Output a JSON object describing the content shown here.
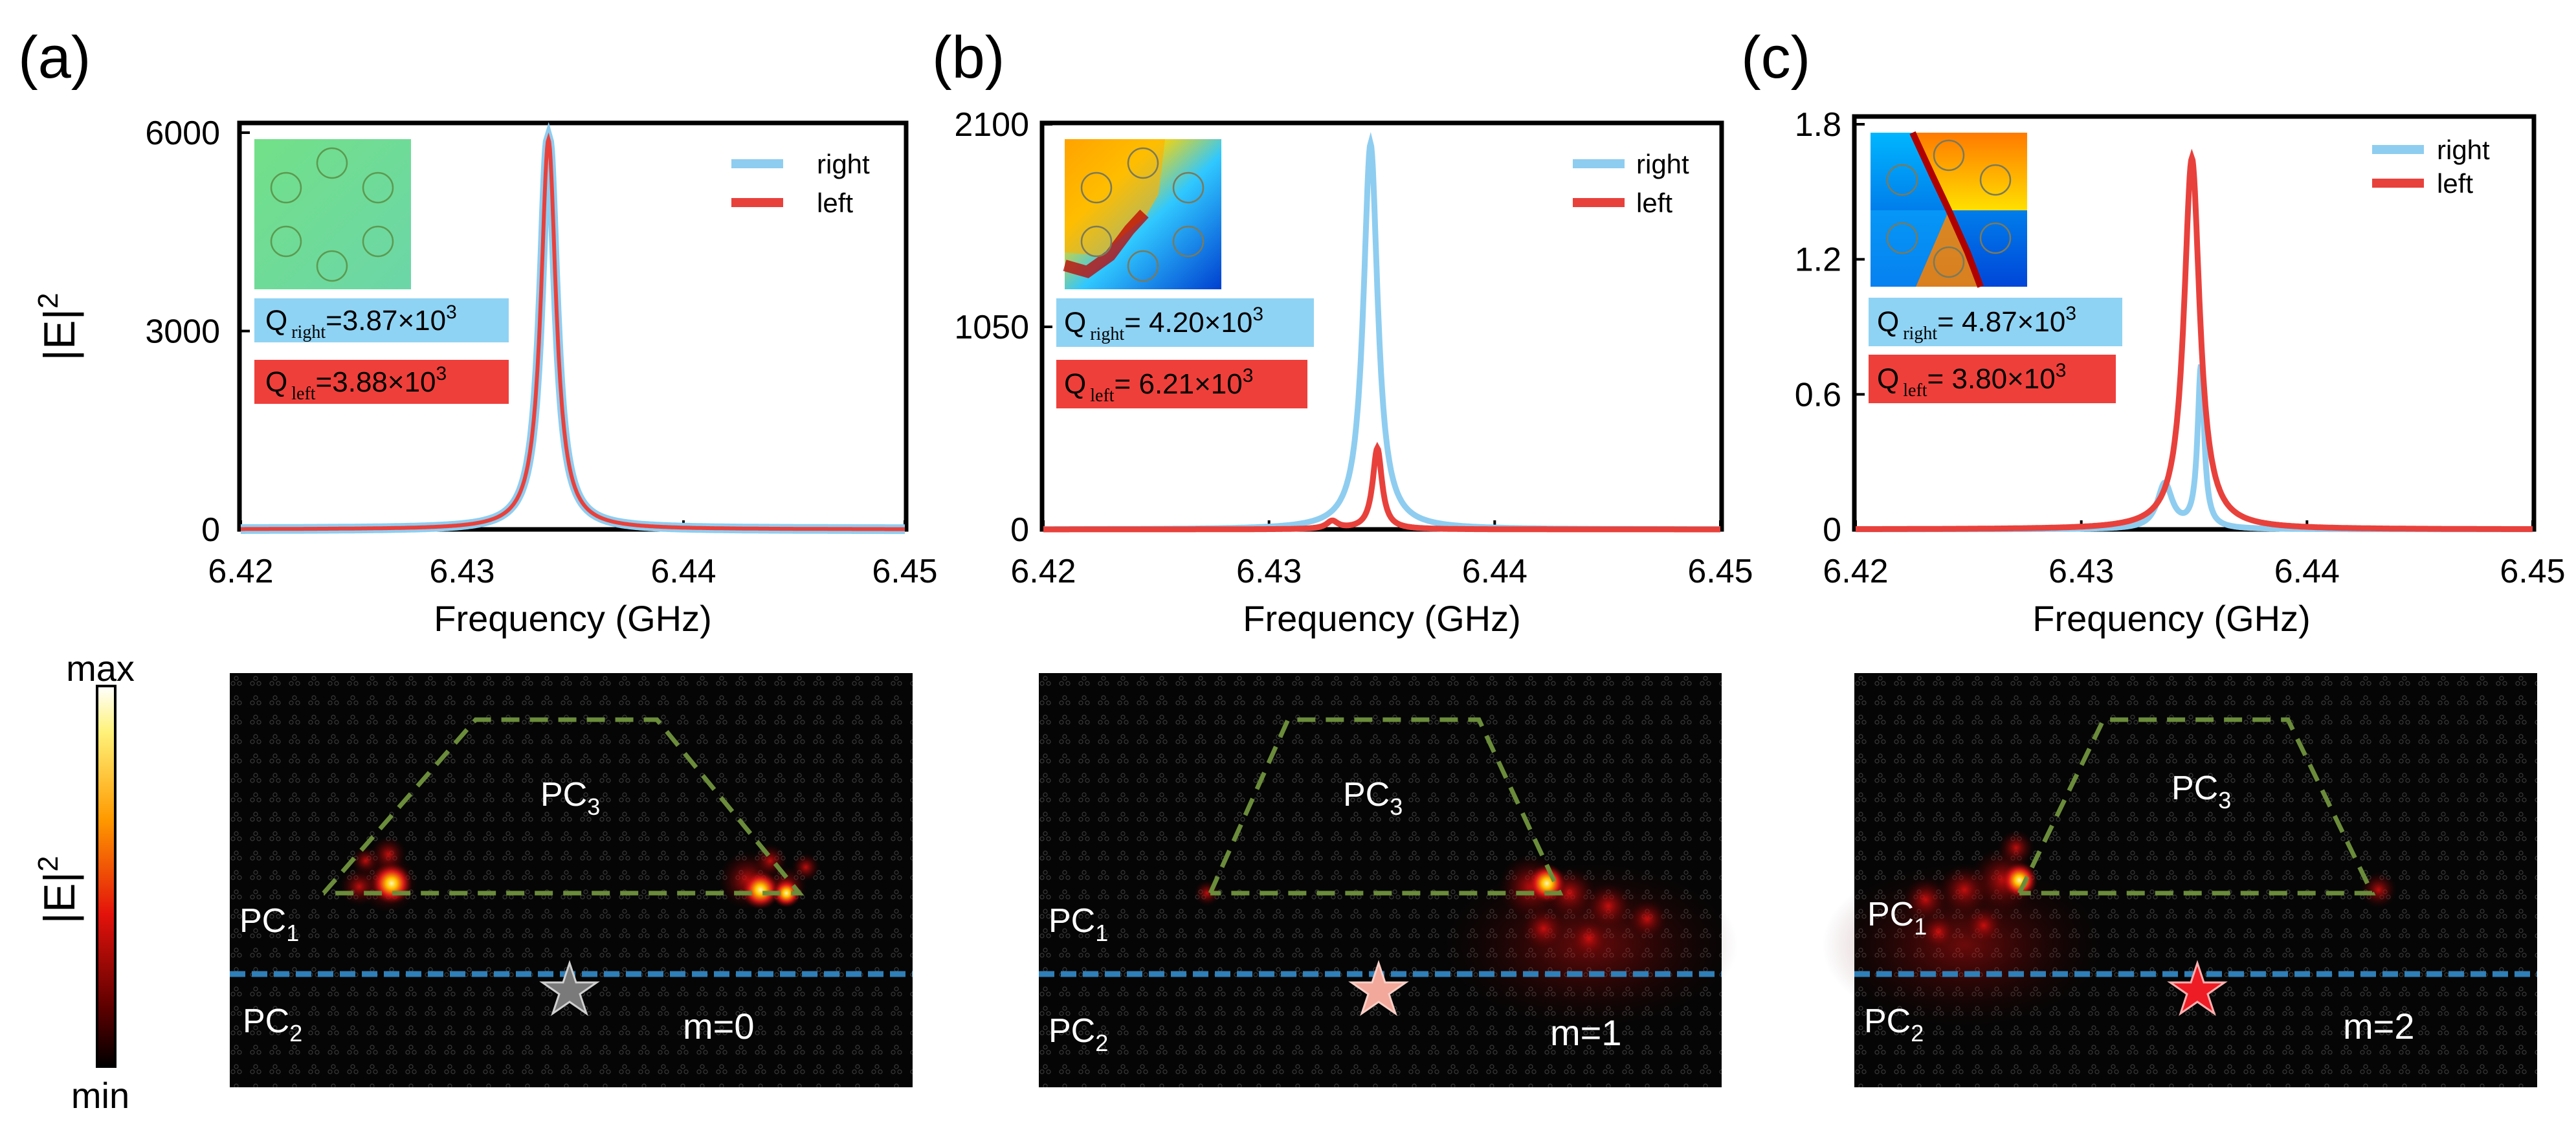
{
  "colors": {
    "right": "#8ecdf0",
    "left": "#e8413c",
    "right_box": "#8fd3f4",
    "left_box": "#ef3f3a",
    "pc3_line": "#6b8c3a",
    "interface": "#2f7fb8"
  },
  "common": {
    "xlabel": "Frequency (GHz)",
    "ylabel": "|E|",
    "ylabel_sup": "2",
    "legend_right": "right",
    "legend_left": "left",
    "x_ticks": [
      "6.42",
      "6.43",
      "6.44",
      "6.45"
    ]
  },
  "colorbar": {
    "label": "|E|",
    "label_sup": "2",
    "max": "max",
    "min": "min"
  },
  "chart_data": [
    {
      "type": "line",
      "panel": "(a)",
      "title": "",
      "xlabel": "Frequency (GHz)",
      "ylabel": "|E|2",
      "xlim": [
        6.42,
        6.45
      ],
      "ylim": [
        0,
        6000
      ],
      "y_ticks": [
        "0",
        "3000",
        "6000"
      ],
      "y_tick_values": [
        0,
        3000,
        6000
      ],
      "q_right": {
        "prefix": "Q",
        "sub": "right",
        "value": "=3.87×10",
        "exp": "3"
      },
      "q_left": {
        "prefix": "Q",
        "sub": "left",
        "value": "=3.88×10",
        "exp": "3"
      },
      "series": [
        {
          "name": "right",
          "peaks": [
            {
              "f0": 6.4339,
              "amp": 5900,
              "gamma": 0.00083
            }
          ]
        },
        {
          "name": "left",
          "peaks": [
            {
              "f0": 6.4339,
              "amp": 5900,
              "gamma": 0.00083
            }
          ]
        }
      ]
    },
    {
      "type": "line",
      "panel": "(b)",
      "title": "",
      "xlabel": "Frequency (GHz)",
      "ylabel": "|E|2",
      "xlim": [
        6.42,
        6.45
      ],
      "ylim": [
        0,
        2100
      ],
      "y_ticks": [
        "0",
        "1050",
        "2100"
      ],
      "y_tick_values": [
        0,
        1050,
        2100
      ],
      "q_right": {
        "prefix": "Q",
        "sub": "right",
        "value": "= 4.20×10",
        "exp": "3"
      },
      "q_left": {
        "prefix": "Q",
        "sub": "left",
        "value": "= 6.21×10",
        "exp": "3"
      },
      "series": [
        {
          "name": "right",
          "peaks": [
            {
              "f0": 6.4345,
              "amp": 2000,
              "gamma": 0.00077
            }
          ]
        },
        {
          "name": "left",
          "peaks": [
            {
              "f0": 6.4348,
              "amp": 420,
              "gamma": 0.0005
            },
            {
              "f0": 6.4328,
              "amp": 40,
              "gamma": 0.0006
            }
          ]
        }
      ]
    },
    {
      "type": "line",
      "panel": "(c)",
      "title": "",
      "xlabel": "Frequency (GHz)",
      "ylabel": "",
      "xlim": [
        6.42,
        6.45
      ],
      "ylim": [
        0,
        1.8
      ],
      "y_ticks": [
        "0",
        "0.6",
        "1.2",
        "1.8"
      ],
      "y_tick_values": [
        0,
        0.6,
        1.2,
        1.8
      ],
      "q_right": {
        "prefix": "Q",
        "sub": "right",
        "value": "= 4.87×10",
        "exp": "3"
      },
      "q_left": {
        "prefix": "Q",
        "sub": "left",
        "value": "= 3.80×10",
        "exp": "3"
      },
      "series": [
        {
          "name": "right",
          "peaks": [
            {
              "f0": 6.4353,
              "amp": 0.72,
              "gamma": 0.00035
            },
            {
              "f0": 6.4337,
              "amp": 0.2,
              "gamma": 0.0008
            }
          ]
        },
        {
          "name": "left",
          "peaks": [
            {
              "f0": 6.4349,
              "amp": 1.65,
              "gamma": 0.00085
            }
          ]
        }
      ]
    }
  ],
  "field_maps": [
    {
      "panel": "(a)",
      "pc3": "PC",
      "pc3_sub": "3",
      "pc1": "PC",
      "pc1_sub": "1",
      "pc2": "PC",
      "pc2_sub": "2",
      "mode": "m=0",
      "star_color": "#7a7a7a"
    },
    {
      "panel": "(b)",
      "pc3": "PC",
      "pc3_sub": "3",
      "pc1": "PC",
      "pc1_sub": "1",
      "pc2": "PC",
      "pc2_sub": "2",
      "mode": "m=1",
      "star_color": "#f2a89a"
    },
    {
      "panel": "(c)",
      "pc3": "PC",
      "pc3_sub": "3",
      "pc1": "PC",
      "pc1_sub": "1",
      "pc2": "PC",
      "pc2_sub": "2",
      "mode": "m=2",
      "star_color": "#ee1c25"
    }
  ]
}
